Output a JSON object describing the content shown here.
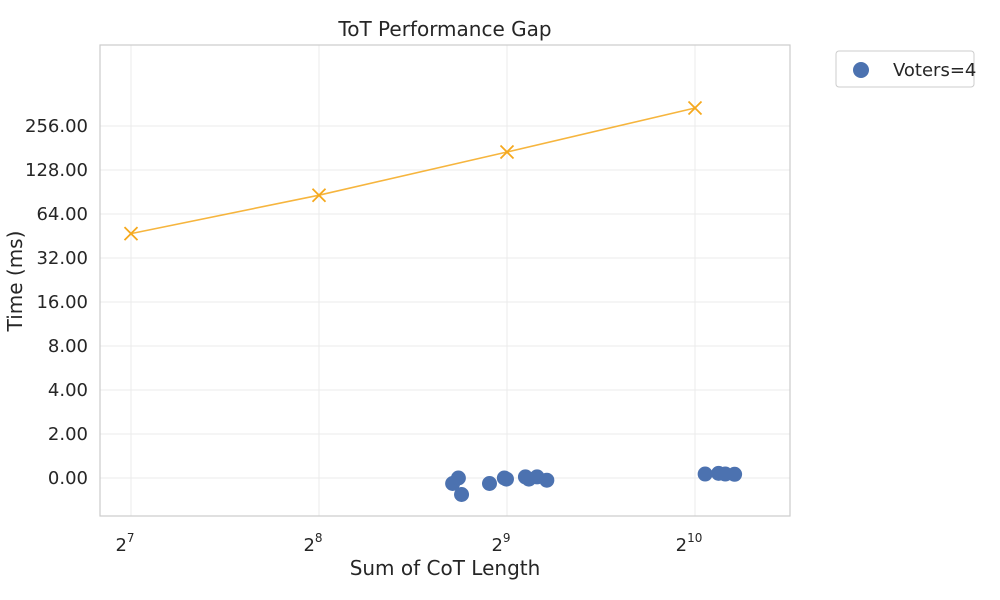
{
  "chart_data": {
    "type": "scatter",
    "title": "ToT Performance Gap",
    "xlabel": "Sum of CoT Length",
    "ylabel": "Time (ms)",
    "x_scale": "log2",
    "x_ticks": [
      {
        "base": "2",
        "exp": "7",
        "value": 128
      },
      {
        "base": "2",
        "exp": "8",
        "value": 256
      },
      {
        "base": "2",
        "exp": "9",
        "value": 512
      },
      {
        "base": "2",
        "exp": "10",
        "value": 1024
      }
    ],
    "y_ticks": [
      "0.00",
      "2.00",
      "4.00",
      "8.00",
      "16.00",
      "32.00",
      "64.00",
      "128.00",
      "256.00"
    ],
    "grid": true,
    "legend_position": "outside-top-right",
    "series": [
      {
        "name": "Voters=4",
        "kind": "scatter",
        "color": "#4c72b0",
        "marker": "circle",
        "points": [
          {
            "x": 419,
            "y": -0.05
          },
          {
            "x": 428,
            "y": 0.0
          },
          {
            "x": 433,
            "y": -0.15
          },
          {
            "x": 480,
            "y": -0.05
          },
          {
            "x": 507,
            "y": 0.0
          },
          {
            "x": 511,
            "y": -0.01
          },
          {
            "x": 548,
            "y": 0.05
          },
          {
            "x": 555,
            "y": -0.01
          },
          {
            "x": 572,
            "y": 0.05
          },
          {
            "x": 593,
            "y": -0.02
          },
          {
            "x": 1063,
            "y": 0.18
          },
          {
            "x": 1117,
            "y": 0.21
          },
          {
            "x": 1145,
            "y": 0.18
          },
          {
            "x": 1185,
            "y": 0.17
          }
        ]
      },
      {
        "kind": "line",
        "color": "#f5a81c",
        "marker": "x",
        "points": [
          {
            "x": 128,
            "y": 47
          },
          {
            "x": 256,
            "y": 86
          },
          {
            "x": 512,
            "y": 170
          },
          {
            "x": 1024,
            "y": 340
          }
        ]
      }
    ]
  }
}
